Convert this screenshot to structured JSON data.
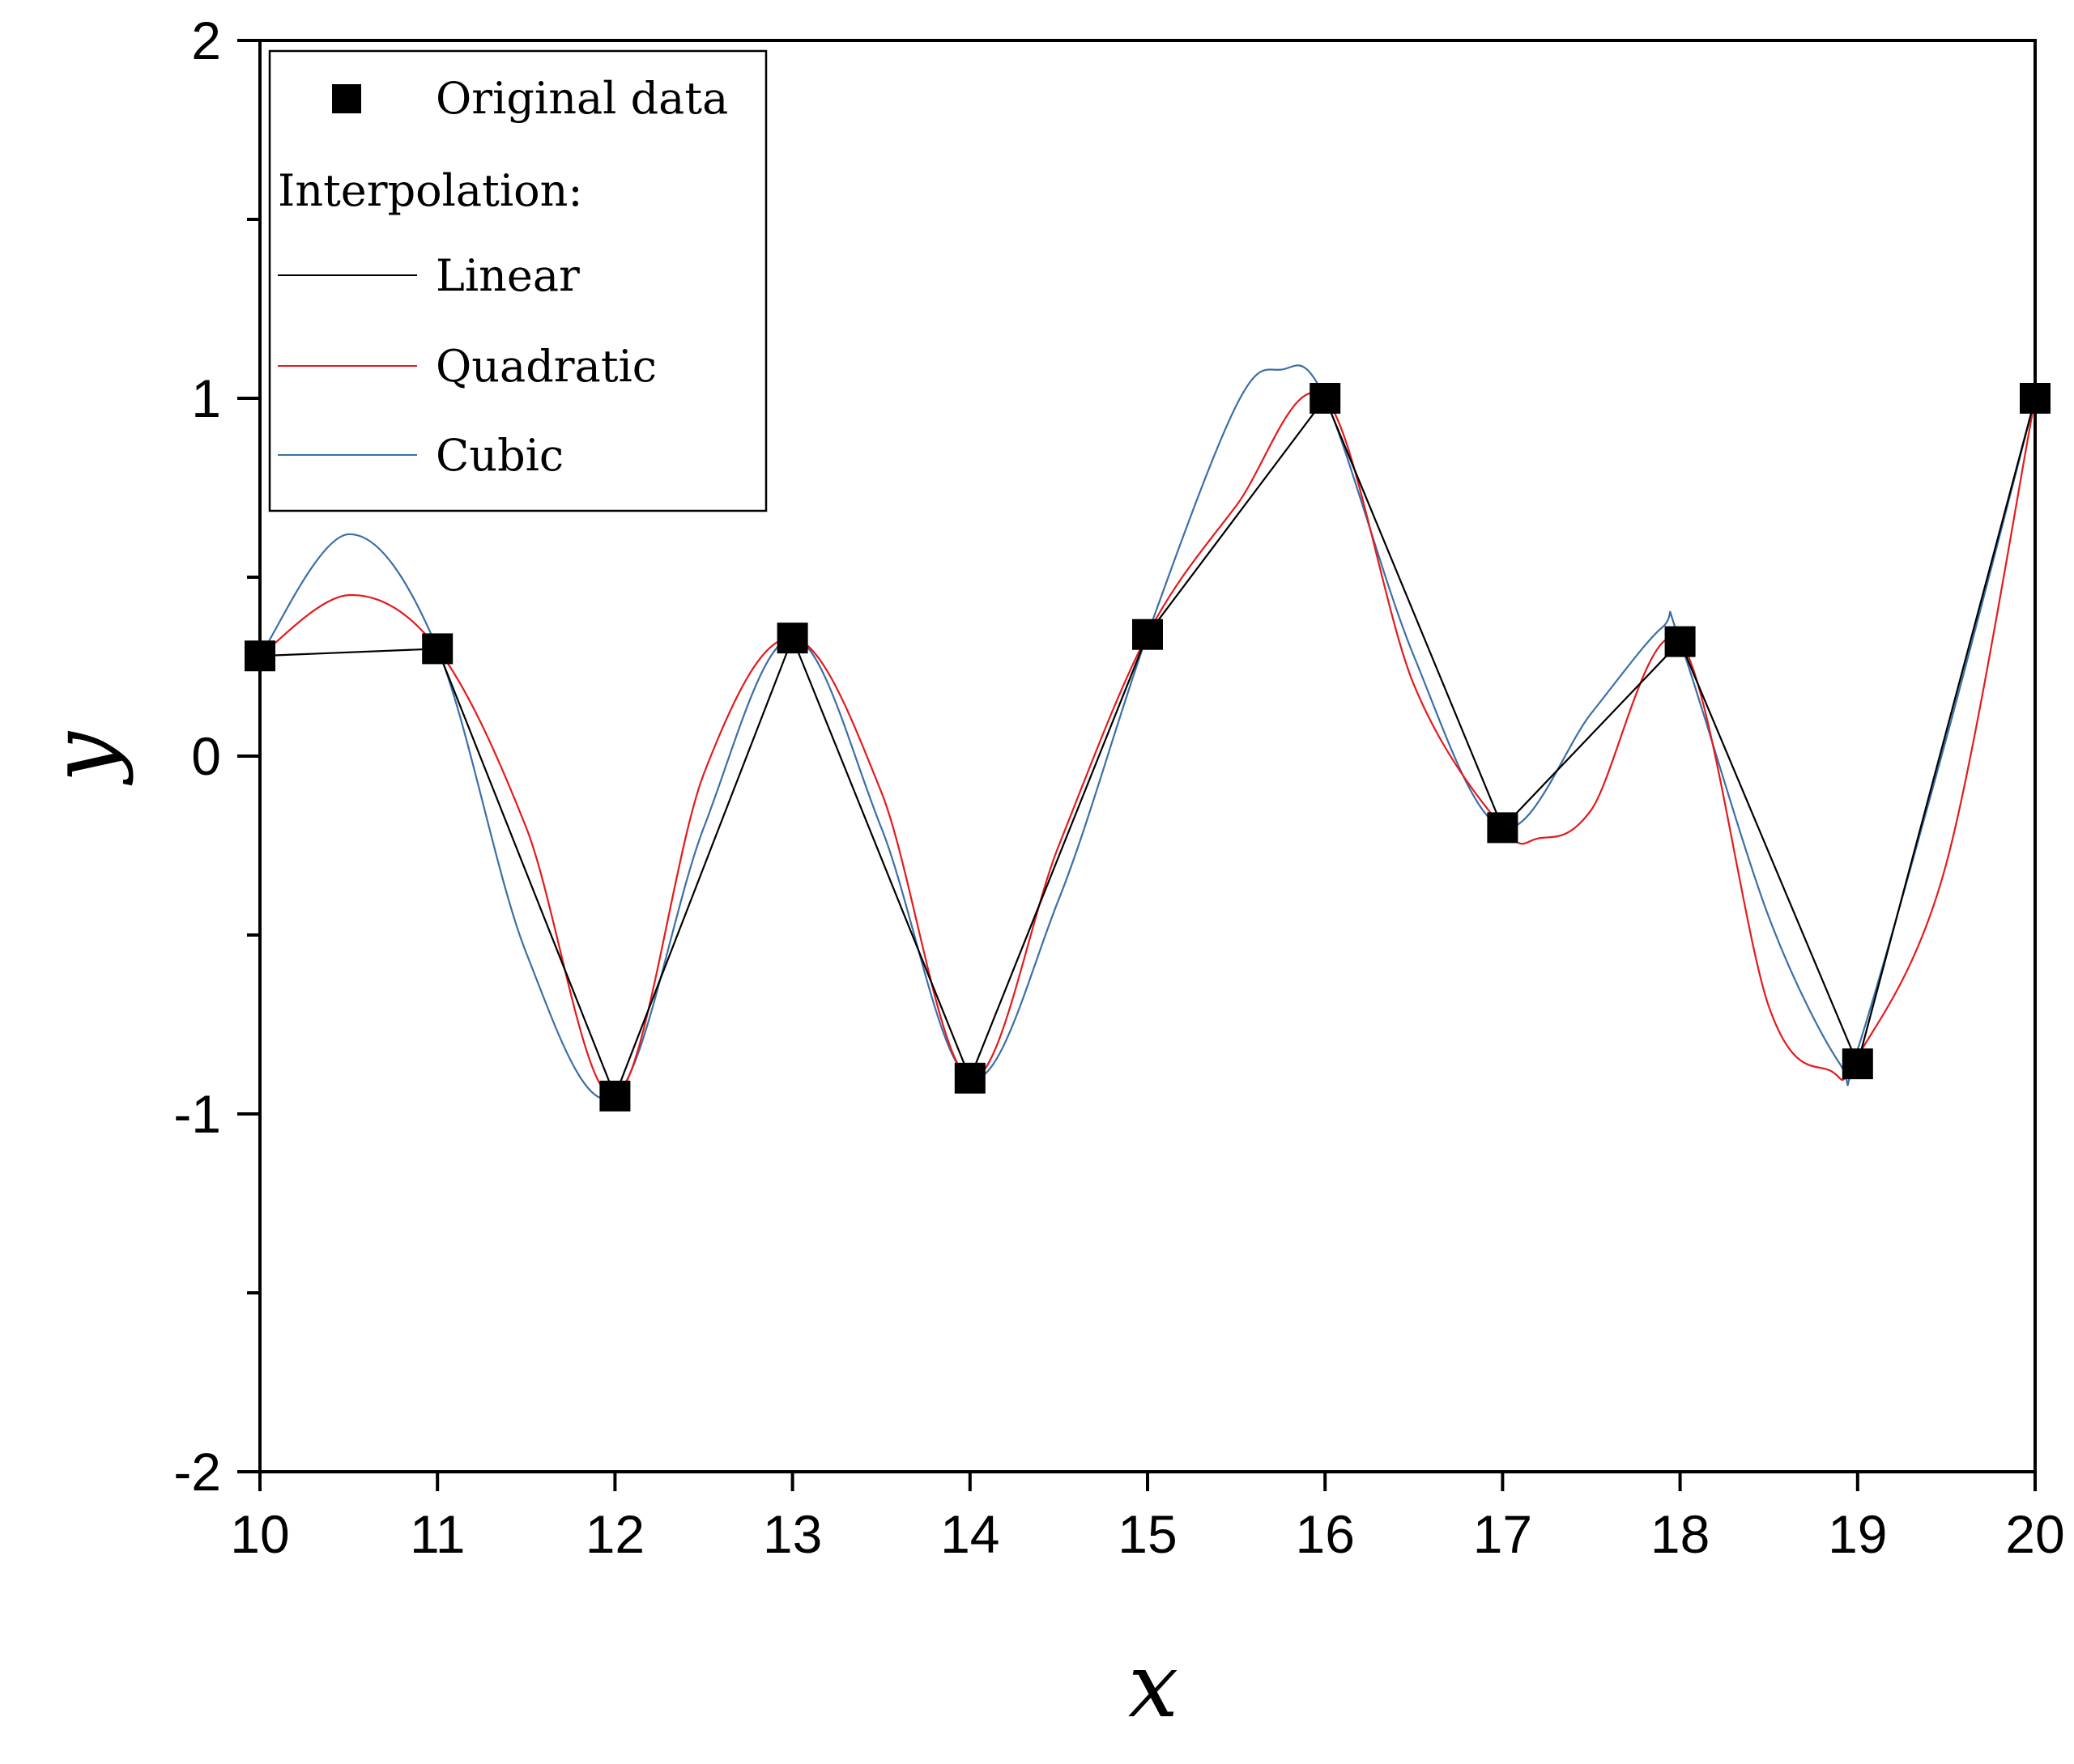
{
  "chart_data": {
    "type": "line",
    "xlabel": "x",
    "ylabel": "y",
    "xlim": [
      10,
      20
    ],
    "ylim": [
      -2,
      2
    ],
    "xticks": [
      "10",
      "11",
      "12",
      "13",
      "14",
      "15",
      "16",
      "17",
      "18",
      "19",
      "20"
    ],
    "yticks": [
      "-2",
      "-1",
      "0",
      "1",
      "2"
    ],
    "grid": false,
    "legend_position": "top-left",
    "legend": {
      "data_label": "Original data",
      "heading": "Interpolation:",
      "entries": [
        "Linear",
        "Quadratic",
        "Cubic"
      ]
    },
    "colors": {
      "original": "#000000",
      "linear": "#000000",
      "quadratic": "#e41a1c",
      "cubic": "#3b6fa6"
    },
    "series": [
      {
        "name": "Original data",
        "style": "markers",
        "x": [
          10,
          11,
          12,
          13,
          14,
          15,
          16,
          17,
          18,
          19,
          20
        ],
        "y": [
          0.28,
          0.3,
          -0.95,
          0.33,
          -0.9,
          0.34,
          1.0,
          -0.2,
          0.32,
          -0.86,
          1.0
        ]
      },
      {
        "name": "Linear",
        "style": "line",
        "x": [
          10,
          11,
          12,
          13,
          14,
          15,
          16,
          17,
          18,
          19,
          20
        ],
        "y": [
          0.28,
          0.3,
          -0.95,
          0.33,
          -0.9,
          0.34,
          1.0,
          -0.2,
          0.32,
          -0.86,
          1.0
        ]
      },
      {
        "name": "Quadratic",
        "style": "line",
        "x": [
          10,
          10.5,
          11,
          11.5,
          12,
          12.5,
          13,
          13.5,
          14,
          14.5,
          15,
          15.5,
          16,
          16.5,
          17,
          17.2,
          17.5,
          18,
          18.5,
          18.85,
          19,
          19.5,
          20
        ],
        "y": [
          0.28,
          0.45,
          0.3,
          -0.2,
          -0.95,
          -0.05,
          0.33,
          -0.1,
          -0.9,
          -0.25,
          0.34,
          0.7,
          1.0,
          0.2,
          -0.2,
          -0.23,
          -0.15,
          0.32,
          -0.7,
          -0.88,
          -0.84,
          -0.3,
          1.0
        ]
      },
      {
        "name": "Cubic",
        "style": "line",
        "x": [
          10,
          10.5,
          11,
          11.5,
          12,
          12.5,
          13,
          13.5,
          14,
          14.5,
          15,
          15.5,
          15.75,
          16,
          16.5,
          17,
          17.5,
          17.9,
          18,
          18.5,
          18.9,
          19,
          19.5,
          20
        ],
        "y": [
          0.28,
          0.62,
          0.3,
          -0.55,
          -0.95,
          -0.2,
          0.33,
          -0.2,
          -0.9,
          -0.4,
          0.34,
          0.98,
          1.08,
          1.0,
          0.28,
          -0.2,
          0.12,
          0.36,
          0.32,
          -0.45,
          -0.86,
          -0.82,
          0.05,
          1.0
        ]
      }
    ]
  }
}
